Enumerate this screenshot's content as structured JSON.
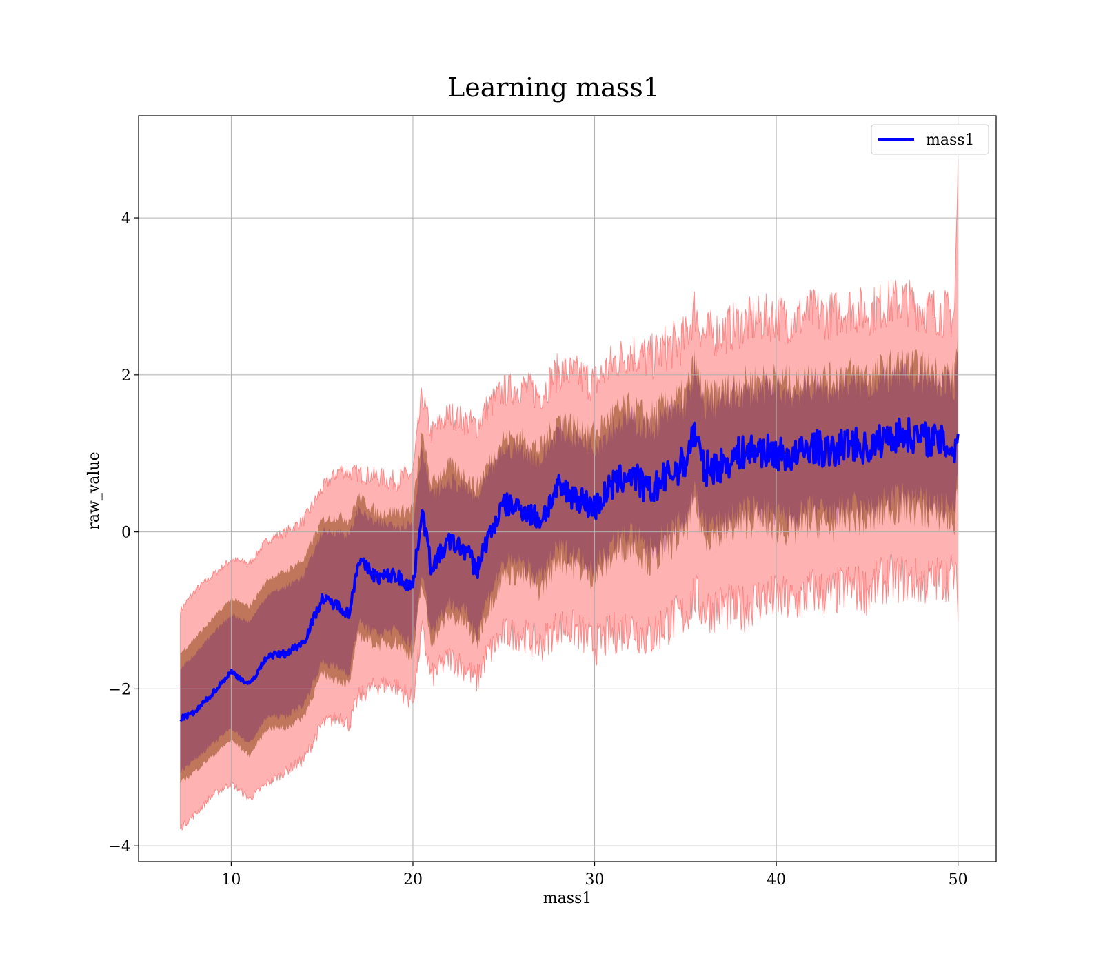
{
  "chart_data": {
    "type": "line",
    "title": "Learning mass1",
    "xlabel": "mass1",
    "ylabel": "raw_value",
    "xlim": [
      4.9,
      52.1
    ],
    "ylim": [
      -4.2,
      5.3
    ],
    "xticks": [
      10,
      20,
      30,
      40,
      50
    ],
    "yticks": [
      -4,
      -2,
      0,
      2,
      4
    ],
    "xtick_labels": [
      "10",
      "20",
      "30",
      "40",
      "50"
    ],
    "ytick_labels": [
      "−4",
      "−2",
      "0",
      "2",
      "4"
    ],
    "grid": true,
    "legend": {
      "placement": "top-right",
      "entries": [
        "mass1"
      ]
    },
    "colors": {
      "mean": "#0000ff",
      "band_outer": "#ff0000",
      "band_inner": "#8b4513",
      "band_core": "#4b0082",
      "grid": "#b0b0b0"
    },
    "series": [
      {
        "name": "mass1",
        "x": [
          7.2,
          8.0,
          9.0,
          10.0,
          11.0,
          12.0,
          13.0,
          14.0,
          15.0,
          16.0,
          16.5,
          17.0,
          18.0,
          19.0,
          20.0,
          20.5,
          21.0,
          22.0,
          23.0,
          23.5,
          24.0,
          25.0,
          26.0,
          27.0,
          28.0,
          29.0,
          30.0,
          31.0,
          32.0,
          33.0,
          34.0,
          35.0,
          35.5,
          36.0,
          37.0,
          38.0,
          39.0,
          40.0,
          41.0,
          42.0,
          43.0,
          44.0,
          45.0,
          46.0,
          47.0,
          48.0,
          49.0,
          49.8,
          50.0
        ],
        "y": [
          -2.38,
          -2.3,
          -2.05,
          -1.78,
          -1.95,
          -1.58,
          -1.55,
          -1.4,
          -0.85,
          -0.95,
          -1.05,
          -0.35,
          -0.58,
          -0.55,
          -0.7,
          0.3,
          -0.45,
          -0.12,
          -0.25,
          -0.5,
          -0.15,
          0.35,
          0.3,
          0.15,
          0.55,
          0.45,
          0.3,
          0.6,
          0.75,
          0.5,
          0.7,
          0.9,
          1.3,
          0.8,
          0.85,
          1.0,
          1.05,
          1.0,
          0.95,
          1.1,
          1.0,
          1.15,
          1.05,
          1.2,
          1.25,
          1.2,
          1.15,
          1.05,
          1.2
        ],
        "band_outer_upper": [
          -1.0,
          -0.75,
          -0.55,
          -0.35,
          -0.4,
          -0.1,
          0.0,
          0.15,
          0.55,
          0.8,
          0.75,
          0.75,
          0.7,
          0.65,
          0.75,
          1.75,
          1.25,
          1.5,
          1.4,
          1.35,
          1.55,
          1.8,
          1.85,
          1.75,
          2.05,
          2.0,
          1.9,
          2.15,
          2.3,
          2.2,
          2.35,
          2.45,
          2.85,
          2.5,
          2.55,
          2.65,
          2.7,
          2.75,
          2.7,
          2.8,
          2.75,
          2.85,
          2.8,
          2.9,
          2.95,
          2.85,
          2.8,
          2.75,
          4.6
        ],
        "band_outer_lower": [
          -3.77,
          -3.6,
          -3.35,
          -3.2,
          -3.4,
          -3.2,
          -3.05,
          -2.9,
          -2.45,
          -2.35,
          -2.45,
          -2.1,
          -1.95,
          -1.95,
          -2.15,
          -1.25,
          -1.85,
          -1.6,
          -1.75,
          -1.9,
          -1.6,
          -1.3,
          -1.3,
          -1.45,
          -1.2,
          -1.25,
          -1.45,
          -1.3,
          -1.2,
          -1.35,
          -1.15,
          -1.05,
          -0.8,
          -1.0,
          -0.95,
          -1.0,
          -0.85,
          -0.85,
          -0.9,
          -0.75,
          -0.8,
          -0.7,
          -0.75,
          -0.6,
          -0.6,
          -0.65,
          -0.6,
          -0.55,
          -0.85
        ],
        "band_inner_upper": [
          -1.55,
          -1.35,
          -1.1,
          -0.85,
          -0.95,
          -0.6,
          -0.5,
          -0.35,
          0.15,
          0.2,
          0.15,
          0.45,
          0.25,
          0.25,
          0.3,
          1.25,
          0.6,
          0.85,
          0.7,
          0.55,
          0.8,
          1.2,
          1.2,
          1.05,
          1.45,
          1.35,
          1.25,
          1.5,
          1.6,
          1.45,
          1.65,
          1.75,
          2.15,
          1.75,
          1.8,
          1.9,
          1.95,
          1.95,
          1.9,
          2.0,
          1.95,
          2.05,
          2.0,
          2.1,
          2.15,
          2.1,
          2.05,
          2.0,
          2.6
        ],
        "band_inner_lower": [
          -3.2,
          -3.05,
          -2.85,
          -2.65,
          -2.85,
          -2.5,
          -2.5,
          -2.35,
          -1.8,
          -1.9,
          -1.95,
          -1.3,
          -1.45,
          -1.4,
          -1.6,
          -0.65,
          -1.4,
          -1.05,
          -1.2,
          -1.45,
          -1.05,
          -0.55,
          -0.55,
          -0.75,
          -0.35,
          -0.45,
          -0.6,
          -0.3,
          -0.15,
          -0.4,
          -0.2,
          0.0,
          0.4,
          -0.05,
          -0.05,
          0.1,
          0.15,
          0.05,
          0.0,
          0.15,
          0.05,
          0.2,
          0.1,
          0.25,
          0.3,
          0.25,
          0.2,
          0.1,
          0.5
        ],
        "band_core_upper": [
          -1.75,
          -1.55,
          -1.3,
          -1.05,
          -1.15,
          -0.8,
          -0.7,
          -0.55,
          0.0,
          0.0,
          -0.05,
          0.3,
          0.1,
          0.1,
          0.1,
          1.1,
          0.45,
          0.65,
          0.55,
          0.4,
          0.65,
          1.05,
          1.05,
          0.9,
          1.3,
          1.2,
          1.1,
          1.35,
          1.45,
          1.3,
          1.5,
          1.6,
          2.0,
          1.6,
          1.65,
          1.75,
          1.8,
          1.8,
          1.75,
          1.85,
          1.8,
          1.9,
          1.85,
          1.95,
          2.0,
          1.95,
          1.9,
          1.85,
          2.3
        ],
        "band_core_lower": [
          -3.05,
          -2.9,
          -2.7,
          -2.5,
          -2.7,
          -2.35,
          -2.35,
          -2.2,
          -1.65,
          -1.75,
          -1.8,
          -1.15,
          -1.3,
          -1.25,
          -1.45,
          -0.5,
          -1.25,
          -0.9,
          -1.05,
          -1.3,
          -0.9,
          -0.4,
          -0.4,
          -0.6,
          -0.2,
          -0.3,
          -0.45,
          -0.15,
          0.0,
          -0.25,
          -0.05,
          0.15,
          0.55,
          0.1,
          0.1,
          0.25,
          0.3,
          0.2,
          0.15,
          0.3,
          0.2,
          0.35,
          0.25,
          0.4,
          0.45,
          0.4,
          0.35,
          0.25,
          0.7
        ]
      }
    ]
  }
}
